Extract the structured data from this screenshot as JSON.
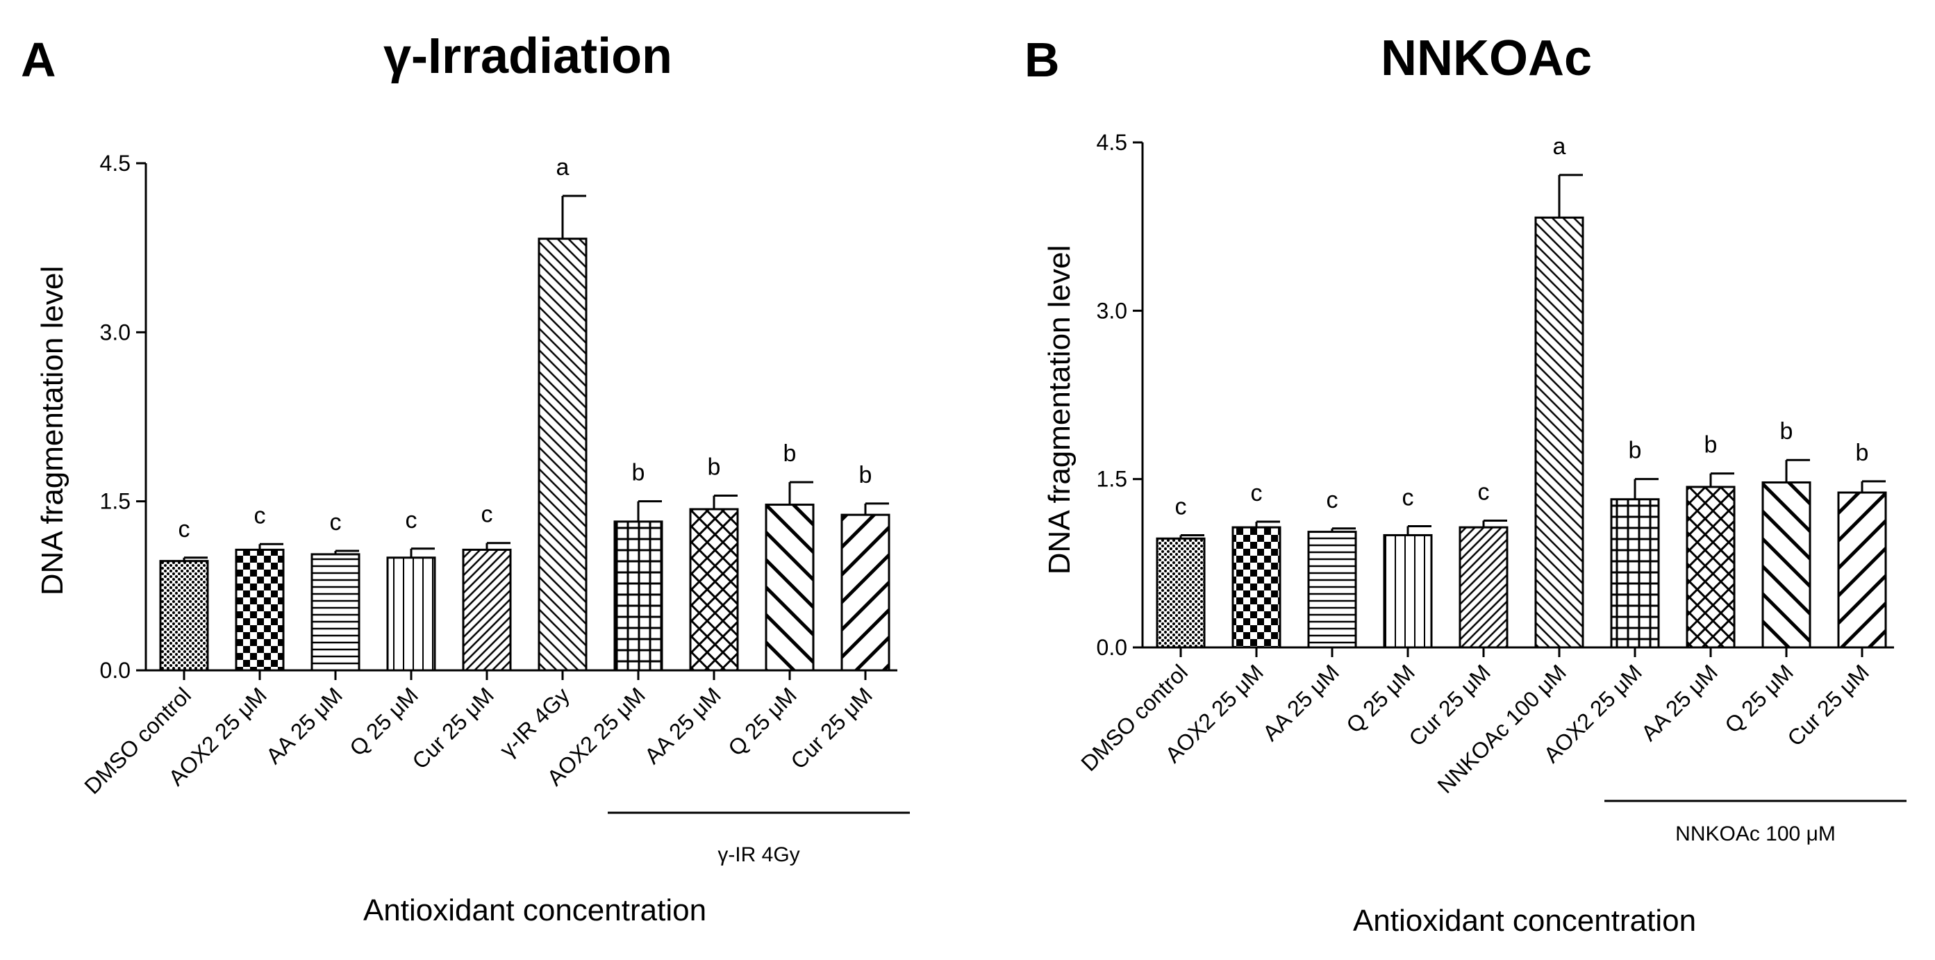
{
  "chart_data": [
    {
      "type": "bar",
      "panel": "A",
      "title": "γ-Irradiation",
      "xlabel": "Antioxidant concentration",
      "ylabel": "DNA fragmentation level",
      "ylim": [
        0,
        4.5
      ],
      "yticks": [
        "0.0",
        "1.5",
        "3.0",
        "4.5"
      ],
      "categories": [
        "DMSO control",
        "AOX2 25 μM",
        "AA 25 μM",
        "Q 25 μM",
        "Cur 25 μM",
        "γ-IR 4Gy",
        "AOX2 25 μM",
        "AA 25 μM",
        "Q 25 μM",
        "Cur 25 μM"
      ],
      "values": [
        0.97,
        1.07,
        1.03,
        1.0,
        1.07,
        3.83,
        1.32,
        1.43,
        1.47,
        1.38
      ],
      "errors": [
        0.03,
        0.05,
        0.03,
        0.08,
        0.06,
        0.38,
        0.18,
        0.12,
        0.2,
        0.1
      ],
      "significance": [
        "c",
        "c",
        "c",
        "c",
        "c",
        "a",
        "b",
        "b",
        "b",
        "b"
      ],
      "patterns": [
        "dots",
        "checker",
        "hlines",
        "vlines",
        "diag-fine",
        "diag-med",
        "grid",
        "crosshatch",
        "diag-back",
        "diag-fwd"
      ],
      "group_label": "γ-IR 4Gy",
      "group_start": 6,
      "group_end": 9
    },
    {
      "type": "bar",
      "panel": "B",
      "title": "NNKOAc",
      "xlabel": "Antioxidant concentration",
      "ylabel": "DNA fragmentation level",
      "ylim": [
        0,
        4.5
      ],
      "yticks": [
        "0.0",
        "1.5",
        "3.0",
        "4.5"
      ],
      "categories": [
        "DMSO control",
        "AOX2 25 μM",
        "AA 25 μM",
        "Q 25 μM",
        "Cur 25 μM",
        "NNKOAc 100 μM",
        "AOX2 25 μM",
        "AA 25 μM",
        "Q 25 μM",
        "Cur 25 μM"
      ],
      "values": [
        0.97,
        1.07,
        1.03,
        1.0,
        1.07,
        3.83,
        1.32,
        1.43,
        1.47,
        1.38
      ],
      "errors": [
        0.03,
        0.05,
        0.03,
        0.08,
        0.06,
        0.38,
        0.18,
        0.12,
        0.2,
        0.1
      ],
      "significance": [
        "c",
        "c",
        "c",
        "c",
        "c",
        "a",
        "b",
        "b",
        "b",
        "b"
      ],
      "patterns": [
        "dots",
        "checker",
        "hlines",
        "vlines",
        "diag-fine",
        "diag-med",
        "grid",
        "crosshatch",
        "diag-back",
        "diag-fwd"
      ],
      "group_label": "NNKOAc 100 μM",
      "group_start": 6,
      "group_end": 9
    }
  ]
}
